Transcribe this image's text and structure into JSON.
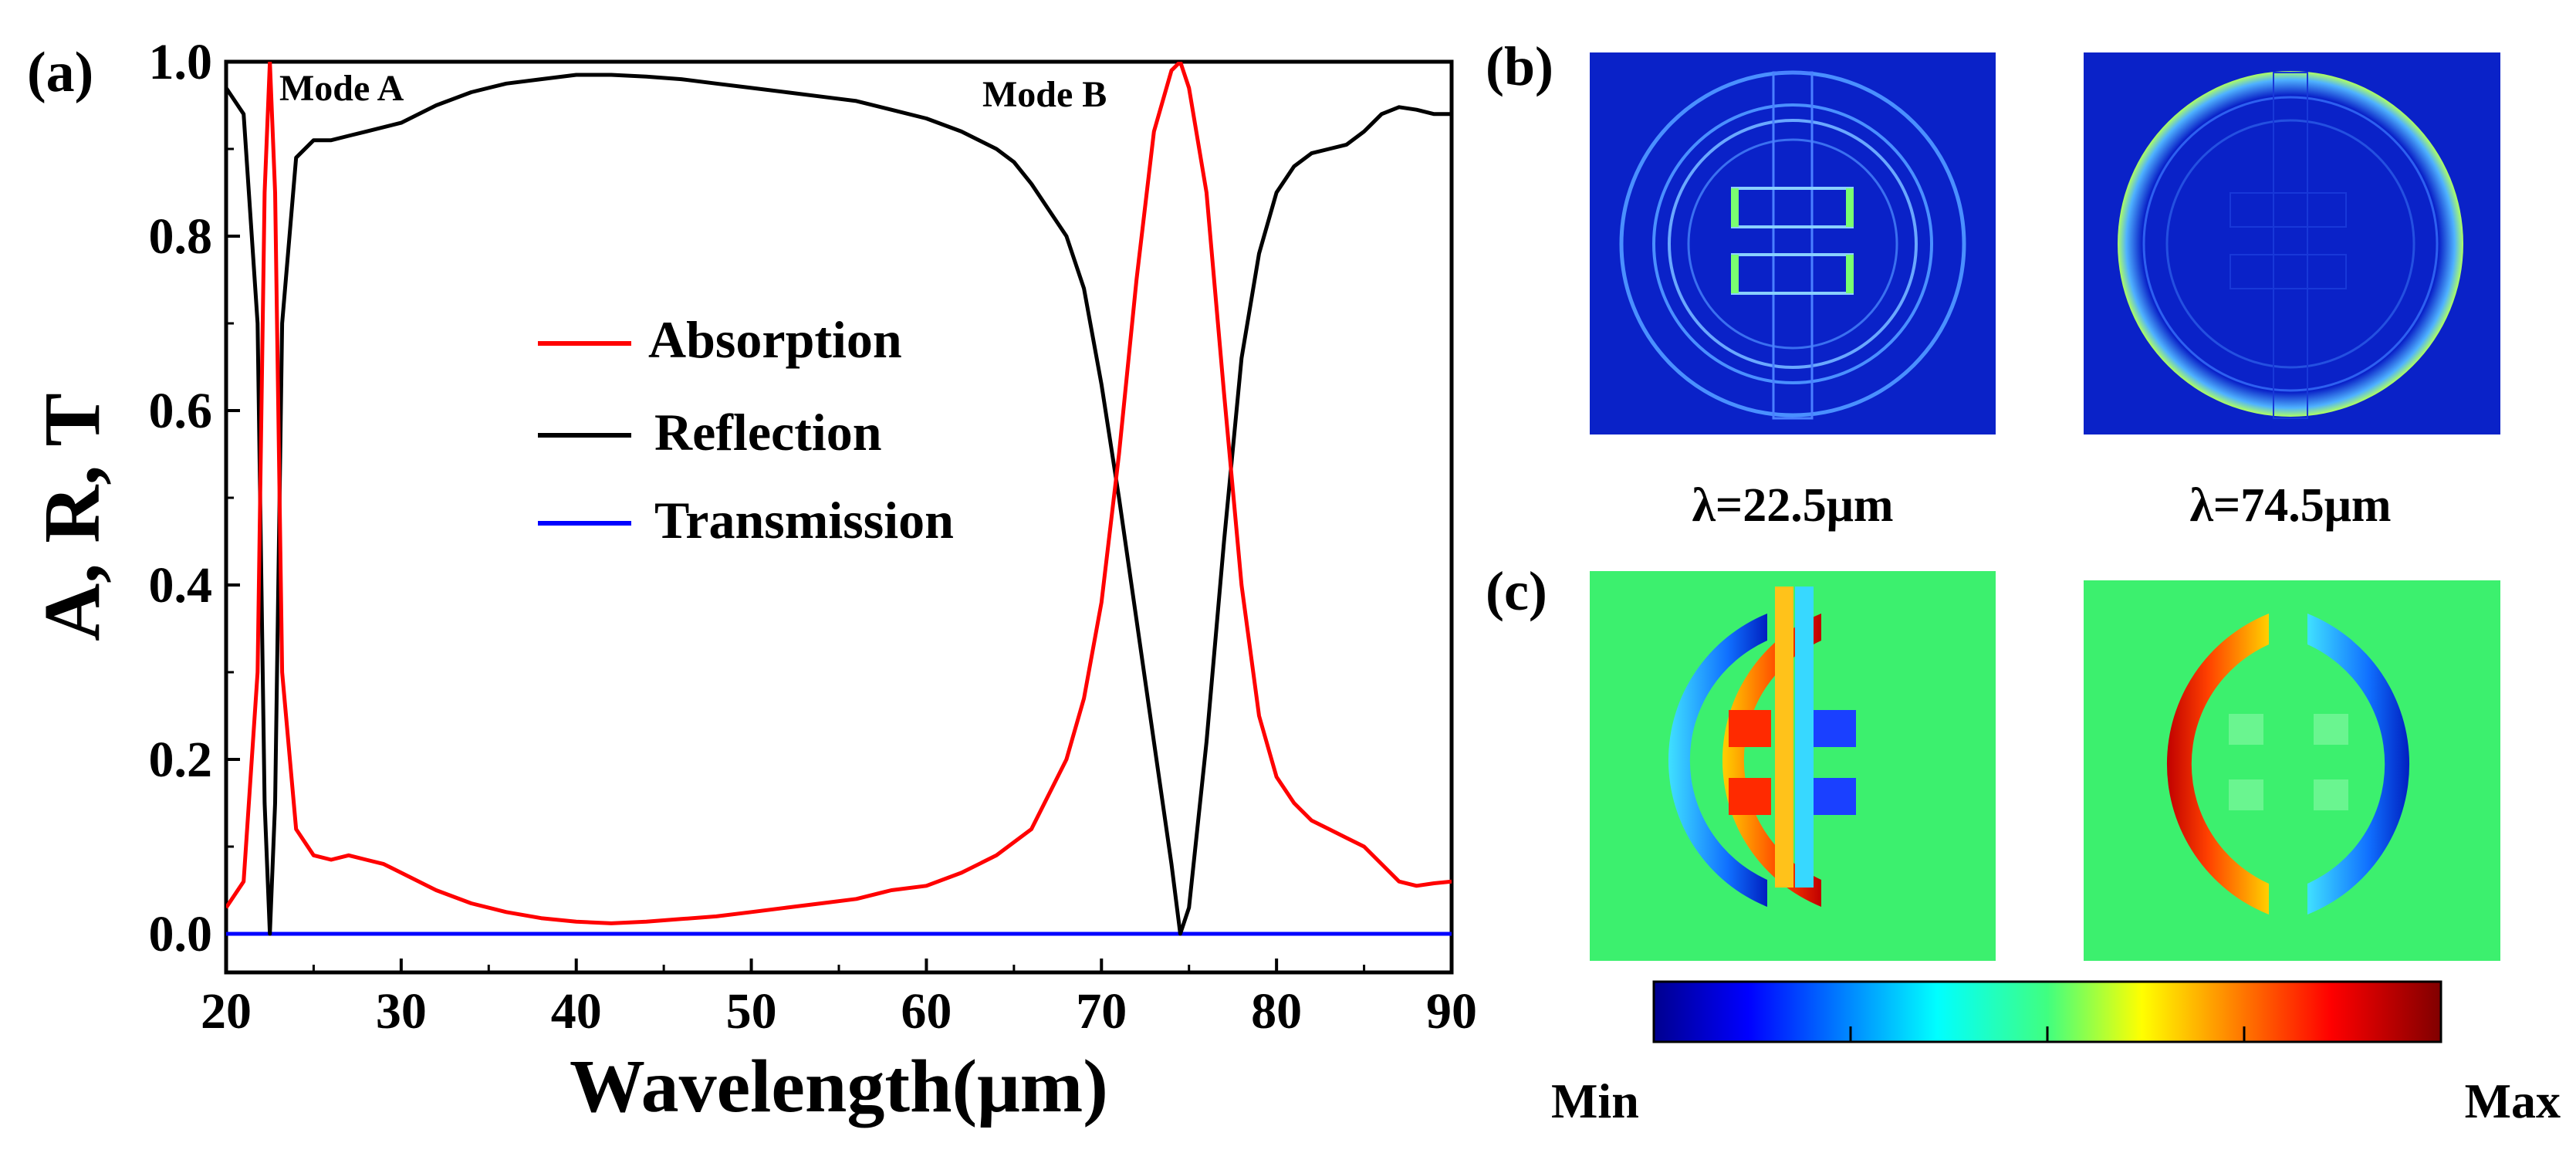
{
  "panel_a": {
    "label": "(a)",
    "mode_a_label": "Mode A",
    "mode_b_label": "Mode B"
  },
  "panel_b": {
    "label": "(b)",
    "lambda_1": "λ=22.5μm",
    "lambda_2": "λ=74.5μm"
  },
  "panel_c": {
    "label": "(c)",
    "colorbar_min": "Min",
    "colorbar_max": "Max"
  },
  "colors": {
    "absorption": "#ff0000",
    "reflection": "#000000",
    "transmission": "#0000ff",
    "field_bg_b": "#0a22c8",
    "field_bg_c": "#3cf06e"
  },
  "chart_data": {
    "type": "line",
    "title": "",
    "xlabel": "Wavelength(μm)",
    "ylabel": "A, R, T",
    "xlim": [
      20,
      90
    ],
    "ylim": [
      0,
      1.0
    ],
    "xticks": [
      20,
      30,
      40,
      50,
      60,
      70,
      80,
      90
    ],
    "xtick_labels": [
      "20",
      "30",
      "40",
      "50",
      "60",
      "70",
      "80",
      "90"
    ],
    "yticks": [
      0,
      0.2,
      0.4,
      0.6,
      0.8,
      1.0
    ],
    "ytick_labels": [
      "0.0",
      "0.2",
      "0.4",
      "0.6",
      "0.8",
      "1.0"
    ],
    "legend_position": "center",
    "series": [
      {
        "name": "Absorption",
        "color": "#ff0000",
        "x": [
          20,
          21,
          21.8,
          22.2,
          22.5,
          22.8,
          23.2,
          24,
          25,
          26,
          27,
          28,
          29,
          30,
          32,
          34,
          36,
          38,
          40,
          42,
          44,
          46,
          48,
          50,
          52,
          54,
          56,
          58,
          60,
          62,
          64,
          66,
          68,
          69,
          70,
          71,
          72,
          73,
          74,
          74.5,
          75,
          76,
          77,
          78,
          79,
          80,
          81,
          82,
          83,
          84,
          85,
          86,
          87,
          88,
          89,
          90
        ],
        "values": [
          0.03,
          0.06,
          0.3,
          0.85,
          1.0,
          0.85,
          0.3,
          0.12,
          0.09,
          0.085,
          0.09,
          0.085,
          0.08,
          0.07,
          0.05,
          0.035,
          0.025,
          0.018,
          0.014,
          0.012,
          0.014,
          0.017,
          0.02,
          0.025,
          0.03,
          0.035,
          0.04,
          0.05,
          0.055,
          0.07,
          0.09,
          0.12,
          0.2,
          0.27,
          0.38,
          0.55,
          0.75,
          0.92,
          0.99,
          1.0,
          0.97,
          0.85,
          0.62,
          0.4,
          0.25,
          0.18,
          0.15,
          0.13,
          0.12,
          0.11,
          0.1,
          0.08,
          0.06,
          0.055,
          0.058,
          0.06
        ]
      },
      {
        "name": "Reflection",
        "color": "#000000",
        "x": [
          20,
          21,
          21.8,
          22.2,
          22.5,
          22.8,
          23.2,
          24,
          25,
          26,
          27,
          28,
          30,
          32,
          34,
          36,
          38,
          40,
          42,
          44,
          46,
          48,
          50,
          52,
          54,
          56,
          58,
          60,
          62,
          64,
          65,
          66,
          67,
          68,
          69,
          70,
          71,
          72,
          73,
          74,
          74.5,
          75,
          76,
          77,
          78,
          79,
          80,
          81,
          82,
          83,
          84,
          85,
          86,
          87,
          88,
          89,
          90
        ],
        "values": [
          0.97,
          0.94,
          0.7,
          0.15,
          0.0,
          0.15,
          0.7,
          0.89,
          0.91,
          0.91,
          0.915,
          0.92,
          0.93,
          0.95,
          0.965,
          0.975,
          0.98,
          0.985,
          0.985,
          0.983,
          0.98,
          0.975,
          0.97,
          0.965,
          0.96,
          0.955,
          0.945,
          0.935,
          0.92,
          0.9,
          0.885,
          0.86,
          0.83,
          0.8,
          0.74,
          0.63,
          0.5,
          0.36,
          0.22,
          0.08,
          0.0,
          0.03,
          0.22,
          0.45,
          0.66,
          0.78,
          0.85,
          0.88,
          0.895,
          0.9,
          0.905,
          0.92,
          0.94,
          0.948,
          0.945,
          0.94,
          0.94
        ]
      },
      {
        "name": "Transmission",
        "color": "#0000ff",
        "x": [
          20,
          90
        ],
        "values": [
          0.0,
          0.0
        ]
      }
    ],
    "annotations": [
      "Mode A",
      "Mode B"
    ]
  }
}
